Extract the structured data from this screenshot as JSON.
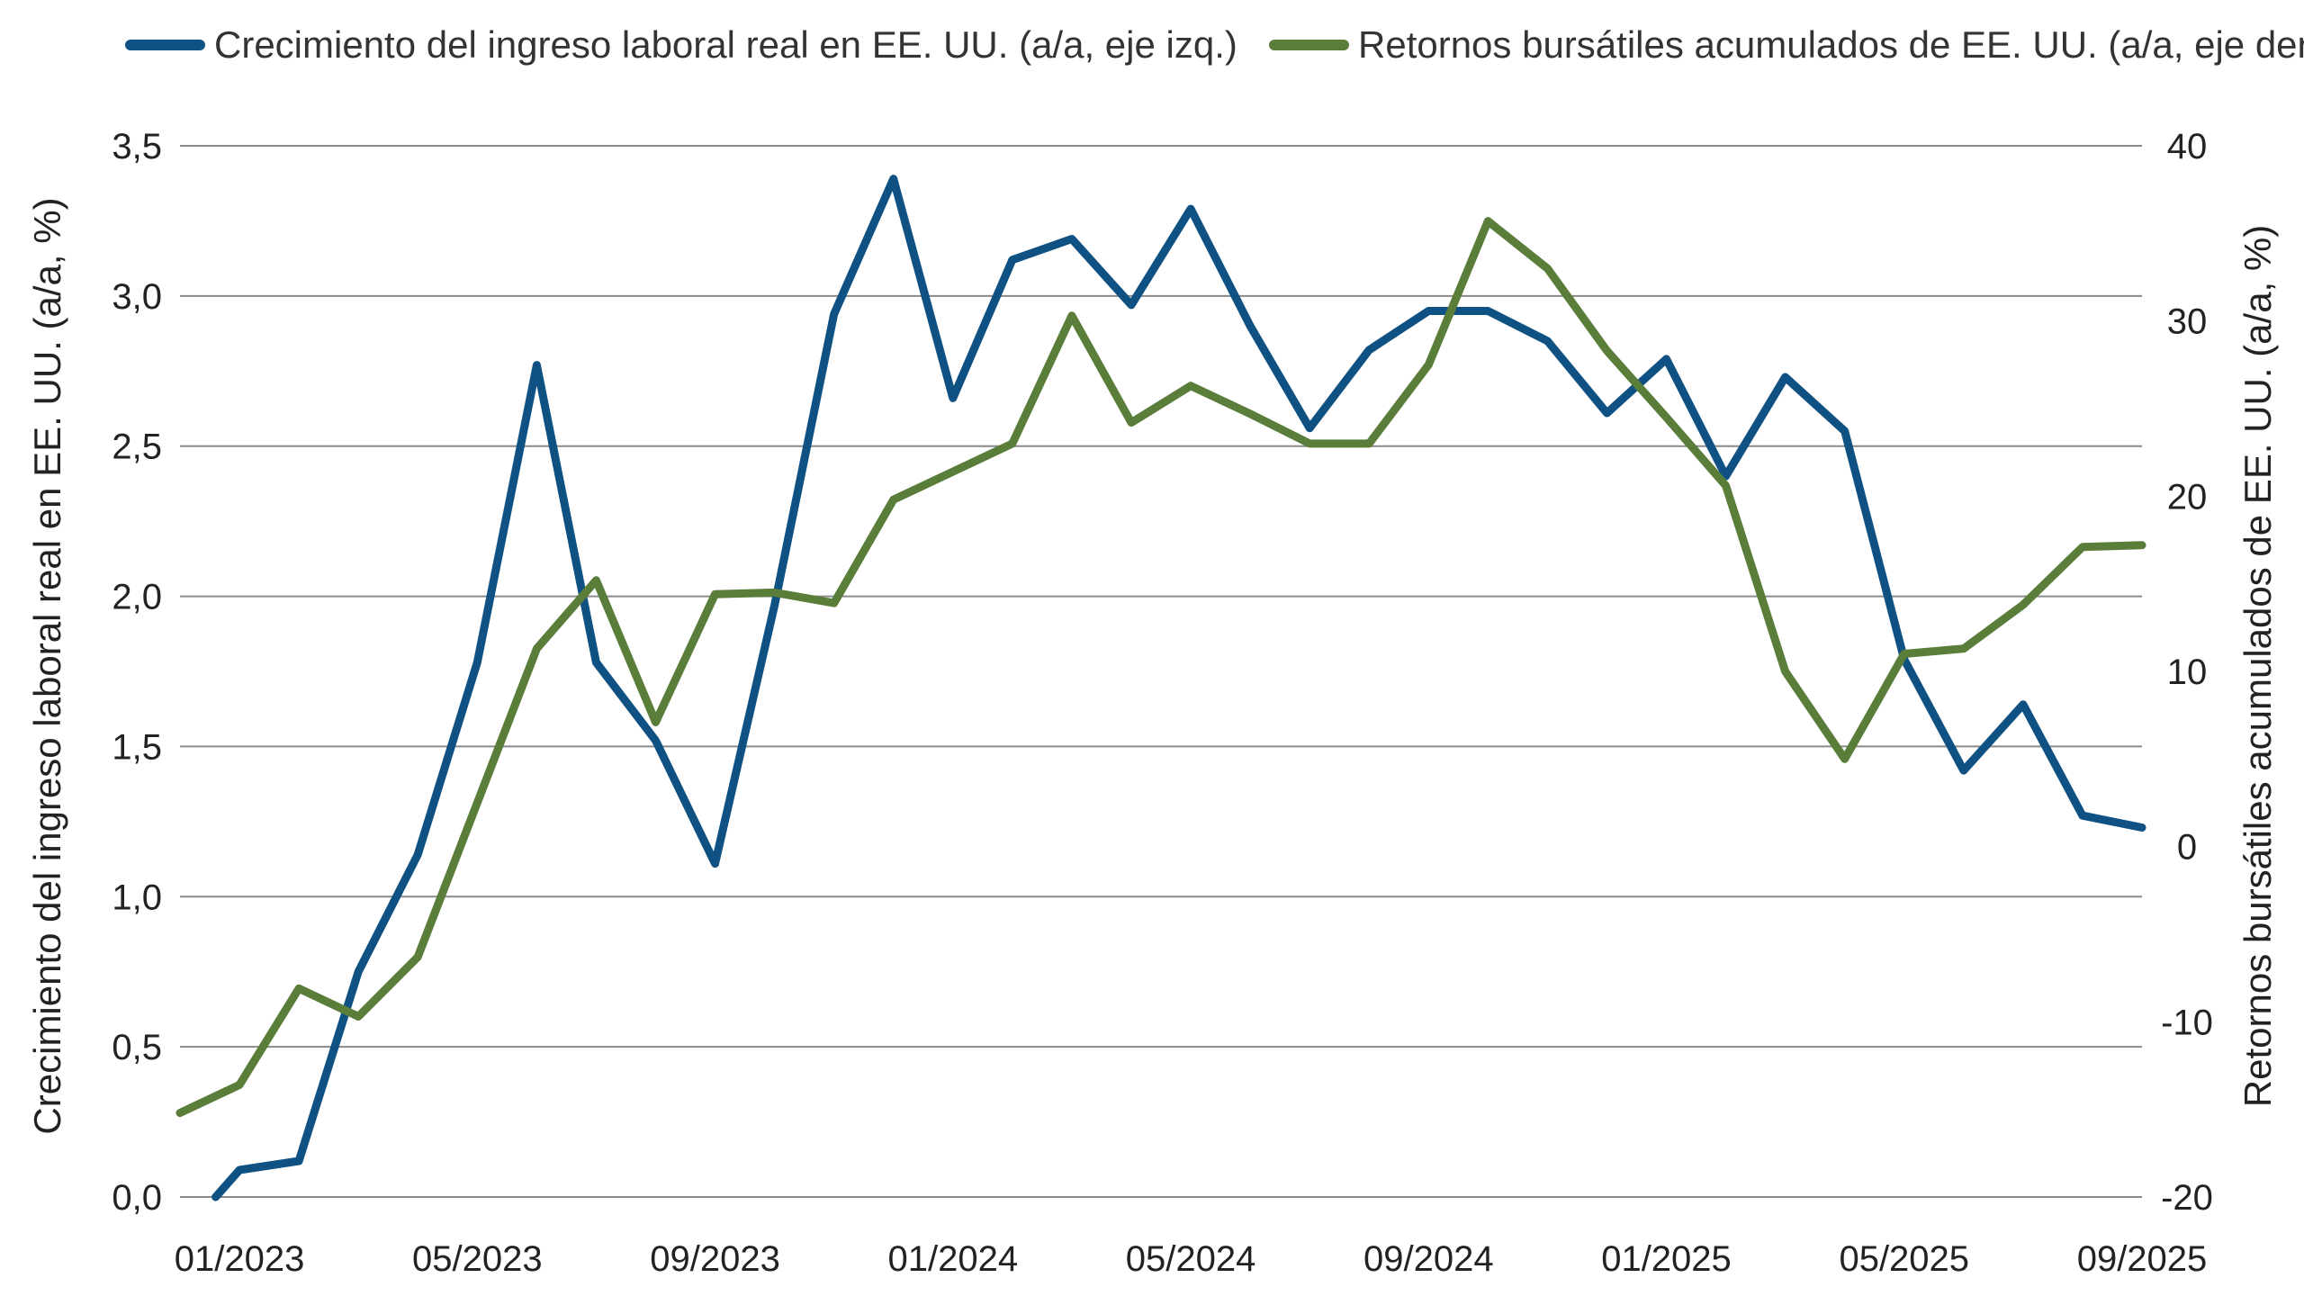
{
  "chart_data": {
    "type": "line",
    "x_labels": [
      "01/2023",
      "02/2023",
      "03/2023",
      "04/2023",
      "05/2023",
      "06/2023",
      "07/2023",
      "08/2023",
      "09/2023",
      "10/2023",
      "11/2023",
      "12/2023",
      "01/2024",
      "02/2024",
      "03/2024",
      "04/2024",
      "05/2024",
      "06/2024",
      "07/2024",
      "08/2024",
      "09/2024",
      "10/2024",
      "11/2024",
      "12/2024",
      "01/2025",
      "02/2025",
      "03/2025",
      "04/2025",
      "05/2025",
      "06/2025",
      "07/2025",
      "08/2025",
      "09/2025"
    ],
    "x_tick_labels": [
      "01/2023",
      "05/2023",
      "09/2023",
      "01/2024",
      "05/2024",
      "09/2024",
      "01/2025",
      "05/2025",
      "09/2025"
    ],
    "x_tick_index": [
      1,
      5,
      9,
      13,
      17,
      21,
      25,
      29,
      33
    ],
    "series": [
      {
        "name": "Crecimiento del ingreso laboral real en EE. UU. (a/a, eje izq.)",
        "axis": "left",
        "color": "#0f5183",
        "x_index": [
          0.6,
          1,
          2,
          3,
          4,
          5,
          6,
          7,
          8,
          9,
          10,
          11,
          12,
          13,
          14,
          15,
          16,
          17,
          18,
          19,
          20,
          21,
          22,
          23,
          24,
          25,
          26,
          27,
          28,
          29,
          30,
          31,
          32,
          33
        ],
        "values": [
          0.0,
          0.09,
          0.12,
          0.75,
          1.14,
          1.78,
          2.77,
          1.78,
          1.52,
          1.11,
          1.97,
          2.94,
          3.39,
          2.66,
          3.12,
          3.19,
          2.97,
          3.29,
          2.9,
          2.56,
          2.82,
          2.95,
          2.95,
          2.85,
          2.61,
          2.79,
          2.4,
          2.73,
          2.55,
          1.79,
          1.42,
          1.64,
          1.27,
          1.23
        ]
      },
      {
        "name": "Retornos bursátiles acumulados de EE. UU. (a/a, eje der.)",
        "axis": "right",
        "color": "#5a7d3a",
        "x_index": [
          0,
          1,
          2,
          3,
          4,
          5,
          6,
          7,
          8,
          9,
          10,
          11,
          12,
          13,
          14,
          15,
          16,
          17,
          18,
          19,
          20,
          21,
          22,
          23,
          24,
          25,
          26,
          27,
          28,
          29,
          30,
          31,
          32,
          33
        ],
        "values": [
          -15.2,
          -13.6,
          -8.1,
          -9.7,
          -6.3,
          2.5,
          11.3,
          15.2,
          7.1,
          14.4,
          14.5,
          13.9,
          19.8,
          21.4,
          23.0,
          30.3,
          24.2,
          26.3,
          24.7,
          23.0,
          23.0,
          27.5,
          35.7,
          33.0,
          28.3,
          24.5,
          20.6,
          10.0,
          5.0,
          11.0,
          11.3,
          13.8,
          17.1,
          17.2
        ]
      }
    ],
    "y_left": {
      "label": "Crecimiento del ingreso laboral real en EE. UU. (a/a, %)",
      "min": 0,
      "max": 3.5,
      "ticks": [
        "0,0",
        "0,5",
        "1,0",
        "1,5",
        "2,0",
        "2,5",
        "3,0",
        "3,5"
      ]
    },
    "y_right": {
      "label": "Retornos bursátiles acumulados de EE. UU. (a/a, %)",
      "min": -20,
      "max": 40,
      "ticks": [
        "-20",
        "-10",
        "0",
        "10",
        "20",
        "30",
        "40"
      ]
    },
    "grid": true,
    "legend_position": "top"
  }
}
